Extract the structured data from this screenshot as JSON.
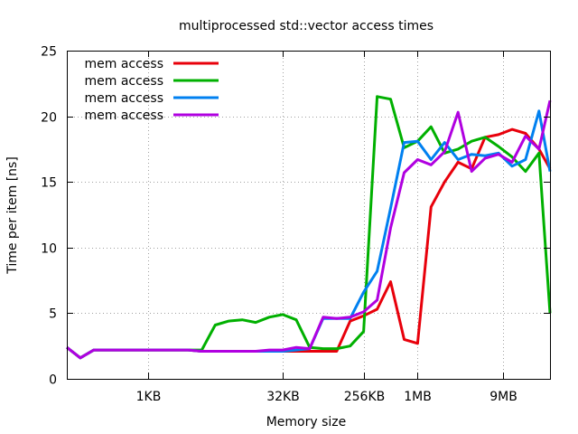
{
  "chart_data": {
    "type": "line",
    "title": "multiprocessed std::vector access times",
    "xlabel": "Memory size",
    "ylabel": "Time per item [ns]",
    "x_scale": "log2",
    "xlim": [
      128,
      31457280
    ],
    "ylim": [
      0,
      25
    ],
    "y_ticks": [
      0,
      5,
      10,
      15,
      20,
      25
    ],
    "x_ticks": [
      {
        "value": 1024,
        "label": "1KB"
      },
      {
        "value": 32768,
        "label": "32KB"
      },
      {
        "value": 262144,
        "label": "256KB"
      },
      {
        "value": 1048576,
        "label": "1MB"
      },
      {
        "value": 9437184,
        "label": "9MB"
      }
    ],
    "grid": true,
    "legend_position": "top-left",
    "series": [
      {
        "name": "mem access",
        "color": "#e8000b",
        "x": [
          128,
          181,
          256,
          362,
          512,
          724,
          1024,
          1448,
          2048,
          2896,
          4096,
          5793,
          8192,
          11585,
          16384,
          23170,
          32768,
          46341,
          65536,
          92682,
          131072,
          185364,
          262144,
          370728,
          524288,
          741455,
          1048576,
          1482910,
          2097152,
          2965821,
          4194304,
          5931642,
          8388608,
          11863283,
          16777216,
          23726566,
          31457280
        ],
        "values": [
          2.4,
          1.6,
          2.2,
          2.2,
          2.2,
          2.2,
          2.2,
          2.2,
          2.2,
          2.2,
          2.1,
          2.1,
          2.1,
          2.1,
          2.1,
          2.1,
          2.1,
          2.1,
          2.1,
          2.1,
          2.1,
          4.4,
          4.8,
          5.3,
          7.4,
          3.0,
          2.7,
          13.1,
          15.0,
          16.5,
          16.0,
          18.4,
          18.6,
          19.0,
          18.7,
          17.5,
          16.0
        ]
      },
      {
        "name": "mem access",
        "color": "#00b000",
        "x": [
          128,
          181,
          256,
          362,
          512,
          724,
          1024,
          1448,
          2048,
          2896,
          4096,
          5793,
          8192,
          11585,
          16384,
          23170,
          32768,
          46341,
          65536,
          92682,
          131072,
          185364,
          262144,
          370728,
          524288,
          741455,
          1048576,
          1482910,
          2097152,
          2965821,
          4194304,
          5931642,
          8388608,
          11863283,
          16777216,
          23726566,
          31457280
        ],
        "values": [
          2.4,
          1.6,
          2.2,
          2.2,
          2.2,
          2.2,
          2.2,
          2.2,
          2.2,
          2.2,
          2.2,
          4.1,
          4.4,
          4.5,
          4.3,
          4.7,
          4.9,
          4.5,
          2.4,
          2.3,
          2.3,
          2.5,
          3.6,
          21.5,
          21.3,
          17.6,
          18.1,
          19.2,
          17.2,
          17.5,
          18.1,
          18.4,
          17.7,
          16.9,
          15.8,
          17.2,
          5.0
        ]
      },
      {
        "name": "mem access",
        "color": "#0080f0",
        "x": [
          128,
          181,
          256,
          362,
          512,
          724,
          1024,
          1448,
          2048,
          2896,
          4096,
          5793,
          8192,
          11585,
          16384,
          23170,
          32768,
          46341,
          65536,
          92682,
          131072,
          185364,
          262144,
          370728,
          524288,
          741455,
          1048576,
          1482910,
          2097152,
          2965821,
          4194304,
          5931642,
          8388608,
          11863283,
          16777216,
          23726566,
          31457280
        ],
        "values": [
          2.4,
          1.6,
          2.2,
          2.2,
          2.2,
          2.2,
          2.2,
          2.2,
          2.2,
          2.2,
          2.1,
          2.1,
          2.1,
          2.1,
          2.1,
          2.1,
          2.1,
          2.2,
          2.3,
          4.6,
          4.6,
          4.6,
          6.6,
          8.2,
          13.0,
          18.0,
          18.1,
          16.7,
          18.0,
          16.7,
          17.1,
          17.0,
          17.2,
          16.2,
          16.7,
          20.4,
          15.8
        ]
      },
      {
        "name": "mem access",
        "color": "#b000e0",
        "x": [
          128,
          181,
          256,
          362,
          512,
          724,
          1024,
          1448,
          2048,
          2896,
          4096,
          5793,
          8192,
          11585,
          16384,
          23170,
          32768,
          46341,
          65536,
          92682,
          131072,
          185364,
          262144,
          370728,
          524288,
          741455,
          1048576,
          1482910,
          2097152,
          2965821,
          4194304,
          5931642,
          8388608,
          11863283,
          16777216,
          23726566,
          31457280
        ],
        "values": [
          2.4,
          1.6,
          2.2,
          2.2,
          2.2,
          2.2,
          2.2,
          2.2,
          2.2,
          2.2,
          2.1,
          2.1,
          2.1,
          2.1,
          2.1,
          2.2,
          2.2,
          2.4,
          2.3,
          4.7,
          4.6,
          4.7,
          5.1,
          6.0,
          11.5,
          15.7,
          16.7,
          16.3,
          17.3,
          20.3,
          15.8,
          16.8,
          17.1,
          16.5,
          18.5,
          17.5,
          21.2
        ]
      }
    ]
  }
}
